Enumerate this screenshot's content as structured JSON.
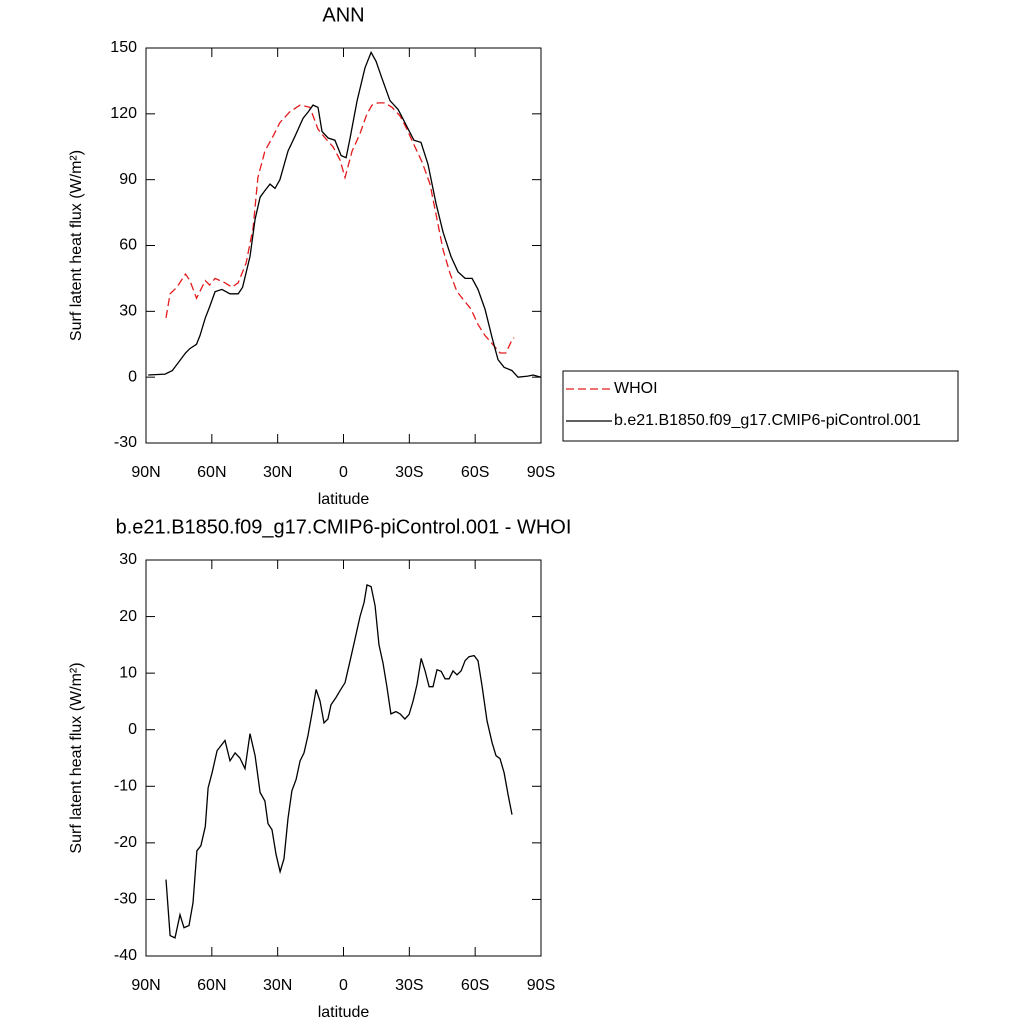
{
  "chart_data": [
    {
      "type": "line",
      "title": "ANN",
      "x_label": "latitude",
      "y_label": "Surf latent heat flux (W/m²)",
      "xlim": [
        90,
        -90
      ],
      "xticks": [
        {
          "value": 90,
          "label": "90N"
        },
        {
          "value": 60,
          "label": "60N"
        },
        {
          "value": 30,
          "label": "30N"
        },
        0,
        {
          "value": -30,
          "label": "30S"
        },
        {
          "value": -60,
          "label": "60S"
        },
        {
          "value": -90,
          "label": "90S"
        }
      ],
      "ylim": [
        -30,
        150
      ],
      "yticks": [
        -30,
        0,
        30,
        60,
        90,
        120,
        150
      ],
      "legend": "right",
      "series": [
        {
          "name": "WHOI",
          "color": "#e41a1c",
          "dashed": true,
          "x": [
            80.9,
            79,
            75.9,
            72,
            70,
            67,
            63,
            61,
            58.5,
            54,
            50.8,
            48,
            44.4,
            41.2,
            39,
            35.8,
            32,
            29,
            24.4,
            19.8,
            15.3,
            11.6,
            8.4,
            4.8,
            1.6,
            -0.7,
            -3.9,
            -7.5,
            -10.7,
            -13,
            -15.7,
            -18.9,
            -22.1,
            -25.8,
            -28.9,
            -32.1,
            -35.8,
            -39.4,
            -42.2,
            -45.4,
            -48.6,
            -51.7,
            -54.9,
            -58.1,
            -61.3,
            -64.5,
            -68,
            -71.3,
            -74,
            -76.8,
            -77.7
          ],
          "values": [
            27,
            38,
            41,
            47,
            44,
            36,
            44,
            42,
            45,
            43,
            41,
            43,
            52,
            68,
            91,
            103,
            110,
            116,
            121,
            124,
            123,
            113,
            109,
            105,
            99,
            91,
            103,
            111,
            120,
            124,
            125,
            125,
            123,
            119,
            113,
            106,
            98,
            88,
            74,
            58,
            47,
            39,
            35,
            31,
            24,
            19,
            15,
            11,
            11,
            17,
            18
          ]
        },
        {
          "name": "b.e21.B1850.f09_g17.CMIP6-piControl.001",
          "color": "#000000",
          "dashed": false,
          "x": [
            89,
            81.3,
            78,
            72,
            70,
            67,
            65.4,
            63,
            61,
            58.5,
            55.4,
            51.7,
            48,
            46,
            42.6,
            40.3,
            38,
            35.8,
            33.5,
            31.2,
            29,
            25.3,
            22,
            18.4,
            16,
            13.9,
            11.6,
            9.8,
            7,
            3.9,
            1.1,
            -1.2,
            -3,
            -6.2,
            -9.8,
            -12.6,
            -14.8,
            -17.6,
            -21.2,
            -24.9,
            -28.5,
            -32.1,
            -35.3,
            -38.5,
            -42.2,
            -45.4,
            -49,
            -52.2,
            -55.4,
            -58.6,
            -61.3,
            -64.5,
            -67.7,
            -70.4,
            -73.2,
            -76.8,
            -79.5,
            -84,
            -86.4,
            -90
          ],
          "values": [
            1,
            1.4,
            3,
            11,
            13,
            15,
            19,
            27,
            32,
            39,
            40,
            38,
            38,
            41,
            55,
            72,
            82,
            85,
            88,
            86,
            90,
            103,
            110,
            118,
            121,
            124,
            123,
            112,
            109,
            108,
            101,
            100,
            109,
            126,
            141,
            148,
            144,
            136,
            126,
            122,
            115,
            108,
            107,
            97,
            79,
            66,
            55,
            48,
            45,
            45,
            40,
            31,
            18,
            8,
            4.5,
            3,
            0,
            0.5,
            1,
            0
          ]
        }
      ]
    },
    {
      "type": "line",
      "title": "b.e21.B1850.f09_g17.CMIP6-piControl.001 - WHOI",
      "x_label": "latitude",
      "y_label": "Surf latent heat flux (W/m²)",
      "xlim": [
        90,
        -90
      ],
      "xticks": [
        {
          "value": 90,
          "label": "90N"
        },
        {
          "value": 60,
          "label": "60N"
        },
        {
          "value": 30,
          "label": "30N"
        },
        0,
        {
          "value": -30,
          "label": "30S"
        },
        {
          "value": -60,
          "label": "60S"
        },
        {
          "value": -90,
          "label": "90S"
        }
      ],
      "ylim": [
        -40,
        30
      ],
      "yticks": [
        -40,
        -30,
        -20,
        -10,
        0,
        10,
        20,
        30
      ],
      "color": "#000000",
      "x": [
        80.9,
        79,
        76.8,
        74.5,
        72.7,
        70.4,
        68.6,
        66.8,
        65,
        63,
        61.7,
        59.9,
        57.6,
        54,
        51.7,
        49.4,
        47.2,
        44.9,
        42.6,
        40.3,
        38,
        35.8,
        34.4,
        32.6,
        30.7,
        28.9,
        27.1,
        25.3,
        23.5,
        21.6,
        19.8,
        18,
        16.2,
        14.3,
        12.5,
        10.7,
        8.9,
        7.1,
        5.7,
        3.4,
        1.6,
        -0.7,
        -3,
        -5.3,
        -7.5,
        -9.4,
        -10.7,
        -12.6,
        -14.4,
        -16.2,
        -18,
        -19.8,
        -21.6,
        -23.9,
        -25.8,
        -28,
        -29.9,
        -31.7,
        -33.5,
        -35.4,
        -37.2,
        -39,
        -40.8,
        -42.6,
        -44.5,
        -46.3,
        -48.1,
        -49.9,
        -51.7,
        -53.6,
        -55.4,
        -57.2,
        -59.5,
        -61.3,
        -63.1,
        -65.4,
        -67.7,
        -69.5,
        -71.3,
        -73.2,
        -75,
        -76.8
      ],
      "values": [
        -26.5,
        -36.4,
        -36.8,
        -32.7,
        -35,
        -34.6,
        -30.6,
        -21.4,
        -20.5,
        -17.1,
        -10.3,
        -7.6,
        -3.7,
        -1.9,
        -5.5,
        -4.1,
        -5,
        -6.9,
        -0.7,
        -4.6,
        -11.1,
        -12.6,
        -16.6,
        -17.7,
        -22.1,
        -25.1,
        -22.8,
        -15.7,
        -10.8,
        -8.8,
        -5.5,
        -4.1,
        -1.1,
        3,
        7.1,
        5.1,
        1.2,
        1.9,
        4.4,
        5.7,
        6.9,
        8.3,
        12.2,
        16.1,
        20,
        22.5,
        25.6,
        25.3,
        21.9,
        15,
        11.8,
        7.6,
        2.8,
        3.2,
        2.8,
        1.9,
        2.7,
        5.1,
        8,
        12.6,
        10.4,
        7.6,
        7.6,
        10.6,
        10.3,
        9,
        9,
        10.4,
        9.7,
        10.4,
        12.2,
        12.9,
        13.1,
        12.2,
        7.8,
        1.6,
        -2.3,
        -4.6,
        -5.1,
        -7.6,
        -11.5,
        -15
      ]
    }
  ]
}
